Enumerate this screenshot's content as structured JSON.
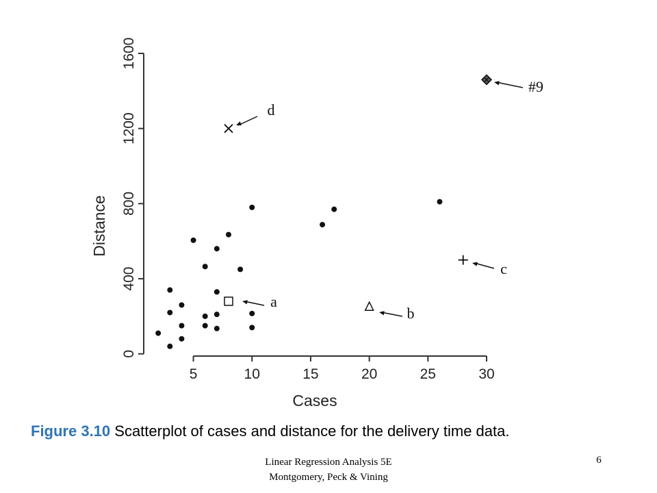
{
  "chart_data": {
    "type": "scatter",
    "xlabel": "Cases",
    "ylabel": "Distance",
    "xlim": [
      1,
      30
    ],
    "ylim": [
      -30,
      1600
    ],
    "x_ticks": [
      5,
      10,
      15,
      20,
      25,
      30
    ],
    "y_ticks": [
      0,
      400,
      800,
      1200,
      1600
    ],
    "grid": false,
    "points": [
      {
        "x": 2,
        "y": 110
      },
      {
        "x": 3,
        "y": 40
      },
      {
        "x": 3,
        "y": 220
      },
      {
        "x": 3,
        "y": 340
      },
      {
        "x": 4,
        "y": 80
      },
      {
        "x": 4,
        "y": 150
      },
      {
        "x": 4,
        "y": 260
      },
      {
        "x": 5,
        "y": 605
      },
      {
        "x": 6,
        "y": 150
      },
      {
        "x": 6,
        "y": 200
      },
      {
        "x": 6,
        "y": 465
      },
      {
        "x": 7,
        "y": 135
      },
      {
        "x": 7,
        "y": 210
      },
      {
        "x": 7,
        "y": 330
      },
      {
        "x": 7,
        "y": 560
      },
      {
        "x": 8,
        "y": 635
      },
      {
        "x": 9,
        "y": 450
      },
      {
        "x": 10,
        "y": 140
      },
      {
        "x": 10,
        "y": 215
      },
      {
        "x": 10,
        "y": 780
      },
      {
        "x": 16,
        "y": 688
      },
      {
        "x": 17,
        "y": 770
      },
      {
        "x": 26,
        "y": 810
      }
    ],
    "special_points": [
      {
        "label": "a",
        "x": 8,
        "y": 280,
        "marker": "square"
      },
      {
        "label": "b",
        "x": 20,
        "y": 250,
        "marker": "triangle"
      },
      {
        "label": "c",
        "x": 28,
        "y": 500,
        "marker": "plus"
      },
      {
        "label": "d",
        "x": 8,
        "y": 1200,
        "marker": "cross"
      },
      {
        "label": "#9",
        "x": 30,
        "y": 1460,
        "marker": "diamond"
      }
    ]
  },
  "caption": {
    "figure_number": "Figure 3.10",
    "text": " Scatterplot of cases and distance for the delivery time data."
  },
  "footer": {
    "line1": "Linear Regression Analysis 5E",
    "line2": "Montgomery, Peck & Vining"
  },
  "page_number": "6"
}
